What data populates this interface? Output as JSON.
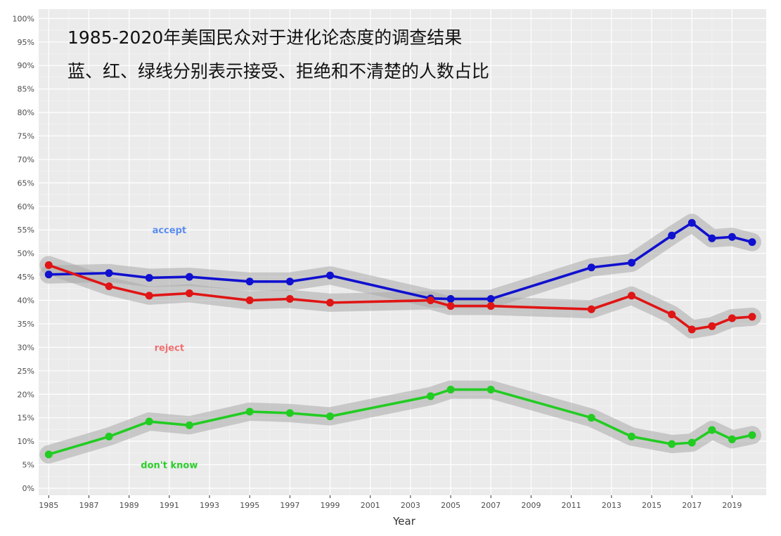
{
  "annotations": {
    "line1": "1985-2020年美国民众对于进化论态度的调查结果",
    "line2": "蓝、红、绿线分别表示接受、拒绝和不清楚的人数占比"
  },
  "chart_data": {
    "type": "line",
    "xlabel": "Year",
    "ylabel": "",
    "xlim": [
      1984.5,
      2020.7
    ],
    "ylim": [
      -1.5,
      102
    ],
    "x_ticks": [
      1985,
      1987,
      1989,
      1991,
      1993,
      1995,
      1997,
      1999,
      2001,
      2003,
      2005,
      2007,
      2009,
      2011,
      2013,
      2015,
      2017,
      2019
    ],
    "y_ticks": [
      0,
      5,
      10,
      15,
      20,
      25,
      30,
      35,
      40,
      45,
      50,
      55,
      60,
      65,
      70,
      75,
      80,
      85,
      90,
      95,
      100
    ],
    "y_tick_suffix": "%",
    "grid": true,
    "confidence_band": true,
    "series": [
      {
        "name": "accept",
        "color": "#1010d0",
        "label_year": 1991,
        "label_value": 55,
        "label_color": "#5b8def",
        "points": [
          [
            1985,
            45.5
          ],
          [
            1988,
            45.8
          ],
          [
            1990,
            44.8
          ],
          [
            1992,
            45.0
          ],
          [
            1995,
            44.0
          ],
          [
            1997,
            44.0
          ],
          [
            1999,
            45.3
          ],
          [
            2004,
            40.4
          ],
          [
            2005,
            40.3
          ],
          [
            2007,
            40.3
          ],
          [
            2012,
            47.0
          ],
          [
            2014,
            48.0
          ],
          [
            2016,
            53.8
          ],
          [
            2017,
            56.5
          ],
          [
            2018,
            53.2
          ],
          [
            2019,
            53.5
          ],
          [
            2020,
            52.4
          ]
        ]
      },
      {
        "name": "reject",
        "color": "#e01515",
        "label_year": 1991,
        "label_value": 30,
        "label_color": "#f07070",
        "points": [
          [
            1985,
            47.5
          ],
          [
            1988,
            43.0
          ],
          [
            1990,
            41.0
          ],
          [
            1992,
            41.5
          ],
          [
            1995,
            40.0
          ],
          [
            1997,
            40.3
          ],
          [
            1999,
            39.5
          ],
          [
            2004,
            40.0
          ],
          [
            2005,
            38.8
          ],
          [
            2007,
            38.8
          ],
          [
            2012,
            38.1
          ],
          [
            2014,
            41.0
          ],
          [
            2016,
            37.0
          ],
          [
            2017,
            33.8
          ],
          [
            2018,
            34.5
          ],
          [
            2019,
            36.2
          ],
          [
            2020,
            36.5
          ]
        ]
      },
      {
        "name": "don't know",
        "color": "#22cc22",
        "label_year": 1991,
        "label_value": 5,
        "label_color": "#2ccd2c",
        "points": [
          [
            1985,
            7.2
          ],
          [
            1988,
            11.0
          ],
          [
            1990,
            14.2
          ],
          [
            1992,
            13.4
          ],
          [
            1995,
            16.3
          ],
          [
            1997,
            16.0
          ],
          [
            1999,
            15.3
          ],
          [
            2004,
            19.6
          ],
          [
            2005,
            21.0
          ],
          [
            2007,
            21.0
          ],
          [
            2012,
            15.0
          ],
          [
            2014,
            11.0
          ],
          [
            2016,
            9.4
          ],
          [
            2017,
            9.7
          ],
          [
            2018,
            12.4
          ],
          [
            2019,
            10.4
          ],
          [
            2020,
            11.3
          ]
        ]
      }
    ]
  }
}
